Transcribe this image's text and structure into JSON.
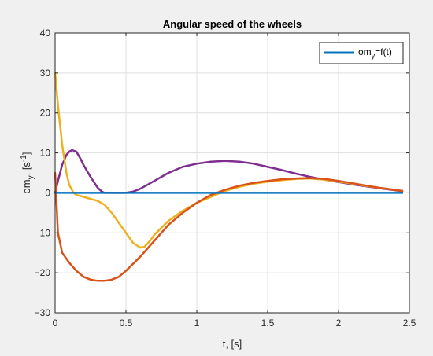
{
  "chart_data": {
    "type": "line",
    "title": "Angular speed of the wheels",
    "xlabel": "t, [s]",
    "ylabel": {
      "base": "om",
      "sub": "y",
      "mid": ", [s",
      "sup": "-1",
      "end": "]"
    },
    "xlim": [
      0,
      2.5
    ],
    "ylim": [
      -30,
      40
    ],
    "xticks": [
      0,
      0.5,
      1,
      1.5,
      2,
      2.5
    ],
    "xtick_labels": [
      "0",
      "0.5",
      "1",
      "1.5",
      "2",
      "2.5"
    ],
    "yticks": [
      -30,
      -20,
      -10,
      0,
      10,
      20,
      30,
      40
    ],
    "ytick_labels": [
      "−30",
      "−20",
      "−10",
      "0",
      "10",
      "20",
      "30",
      "40"
    ],
    "grid": true,
    "legend": {
      "placement": "top-right",
      "entries": [
        {
          "base": "om",
          "sub": "y",
          "rest": "=f(t)"
        }
      ]
    },
    "series": [
      {
        "color": "#0072bd",
        "x": [
          0,
          2.45
        ],
        "y": [
          0,
          0
        ]
      },
      {
        "color": "#d95319",
        "x": [
          0,
          0.02,
          0.05,
          0.1,
          0.15,
          0.2,
          0.25,
          0.3,
          0.35,
          0.4,
          0.45,
          0.5,
          0.6,
          0.7,
          0.8,
          0.9,
          1.0,
          1.1,
          1.2,
          1.3,
          1.4,
          1.5,
          1.6,
          1.7,
          1.8,
          1.9,
          2.0,
          2.1,
          2.2,
          2.3,
          2.45
        ],
        "y": [
          5,
          -10,
          -15,
          -17.5,
          -19.5,
          -21,
          -21.7,
          -22,
          -22,
          -21.7,
          -21,
          -19.5,
          -16,
          -12,
          -8,
          -5,
          -2.5,
          -0.5,
          0.8,
          1.8,
          2.5,
          3,
          3.4,
          3.6,
          3.7,
          3.5,
          3,
          2.4,
          1.8,
          1.2,
          0.5
        ]
      },
      {
        "color": "#edb120",
        "x": [
          0,
          0.02,
          0.05,
          0.08,
          0.1,
          0.13,
          0.15,
          0.2,
          0.25,
          0.3,
          0.35,
          0.4,
          0.45,
          0.5,
          0.55,
          0.6,
          0.63,
          0.67,
          0.7,
          0.8,
          0.9,
          1.0,
          1.1,
          1.2,
          1.3,
          1.4,
          1.5,
          1.6,
          1.7,
          1.8,
          1.9,
          2.0,
          2.1,
          2.2,
          2.3,
          2.45
        ],
        "y": [
          30,
          22,
          12,
          5,
          2,
          0,
          -0.5,
          -1,
          -1.5,
          -2,
          -3,
          -5,
          -7.5,
          -10,
          -12.5,
          -13.7,
          -13.5,
          -12,
          -10.5,
          -7,
          -4.5,
          -2.5,
          -1,
          0.5,
          1.5,
          2.3,
          2.8,
          3.2,
          3.5,
          3.6,
          3.3,
          2.8,
          2.3,
          1.7,
          1.2,
          0.5
        ]
      },
      {
        "color": "#7e2f8e",
        "x": [
          0,
          0.02,
          0.05,
          0.08,
          0.1,
          0.12,
          0.15,
          0.18,
          0.2,
          0.25,
          0.3,
          0.33,
          0.35,
          0.4,
          0.45,
          0.5,
          0.55,
          0.6,
          0.65,
          0.7,
          0.8,
          0.9,
          1.0,
          1.1,
          1.2,
          1.3,
          1.4,
          1.5,
          1.6,
          1.7,
          1.8,
          1.9,
          2.0,
          2.1,
          2.2,
          2.3,
          2.45
        ],
        "y": [
          0,
          3,
          7,
          9.5,
          10.3,
          10.7,
          10.3,
          8.5,
          7,
          4,
          1.3,
          0.3,
          0,
          0,
          0,
          0,
          0.3,
          1,
          2,
          3,
          5,
          6.5,
          7.3,
          7.8,
          8,
          7.8,
          7.3,
          6.5,
          5.7,
          4.8,
          4,
          3.3,
          2.7,
          2.1,
          1.6,
          1.1,
          0.4
        ]
      }
    ]
  }
}
